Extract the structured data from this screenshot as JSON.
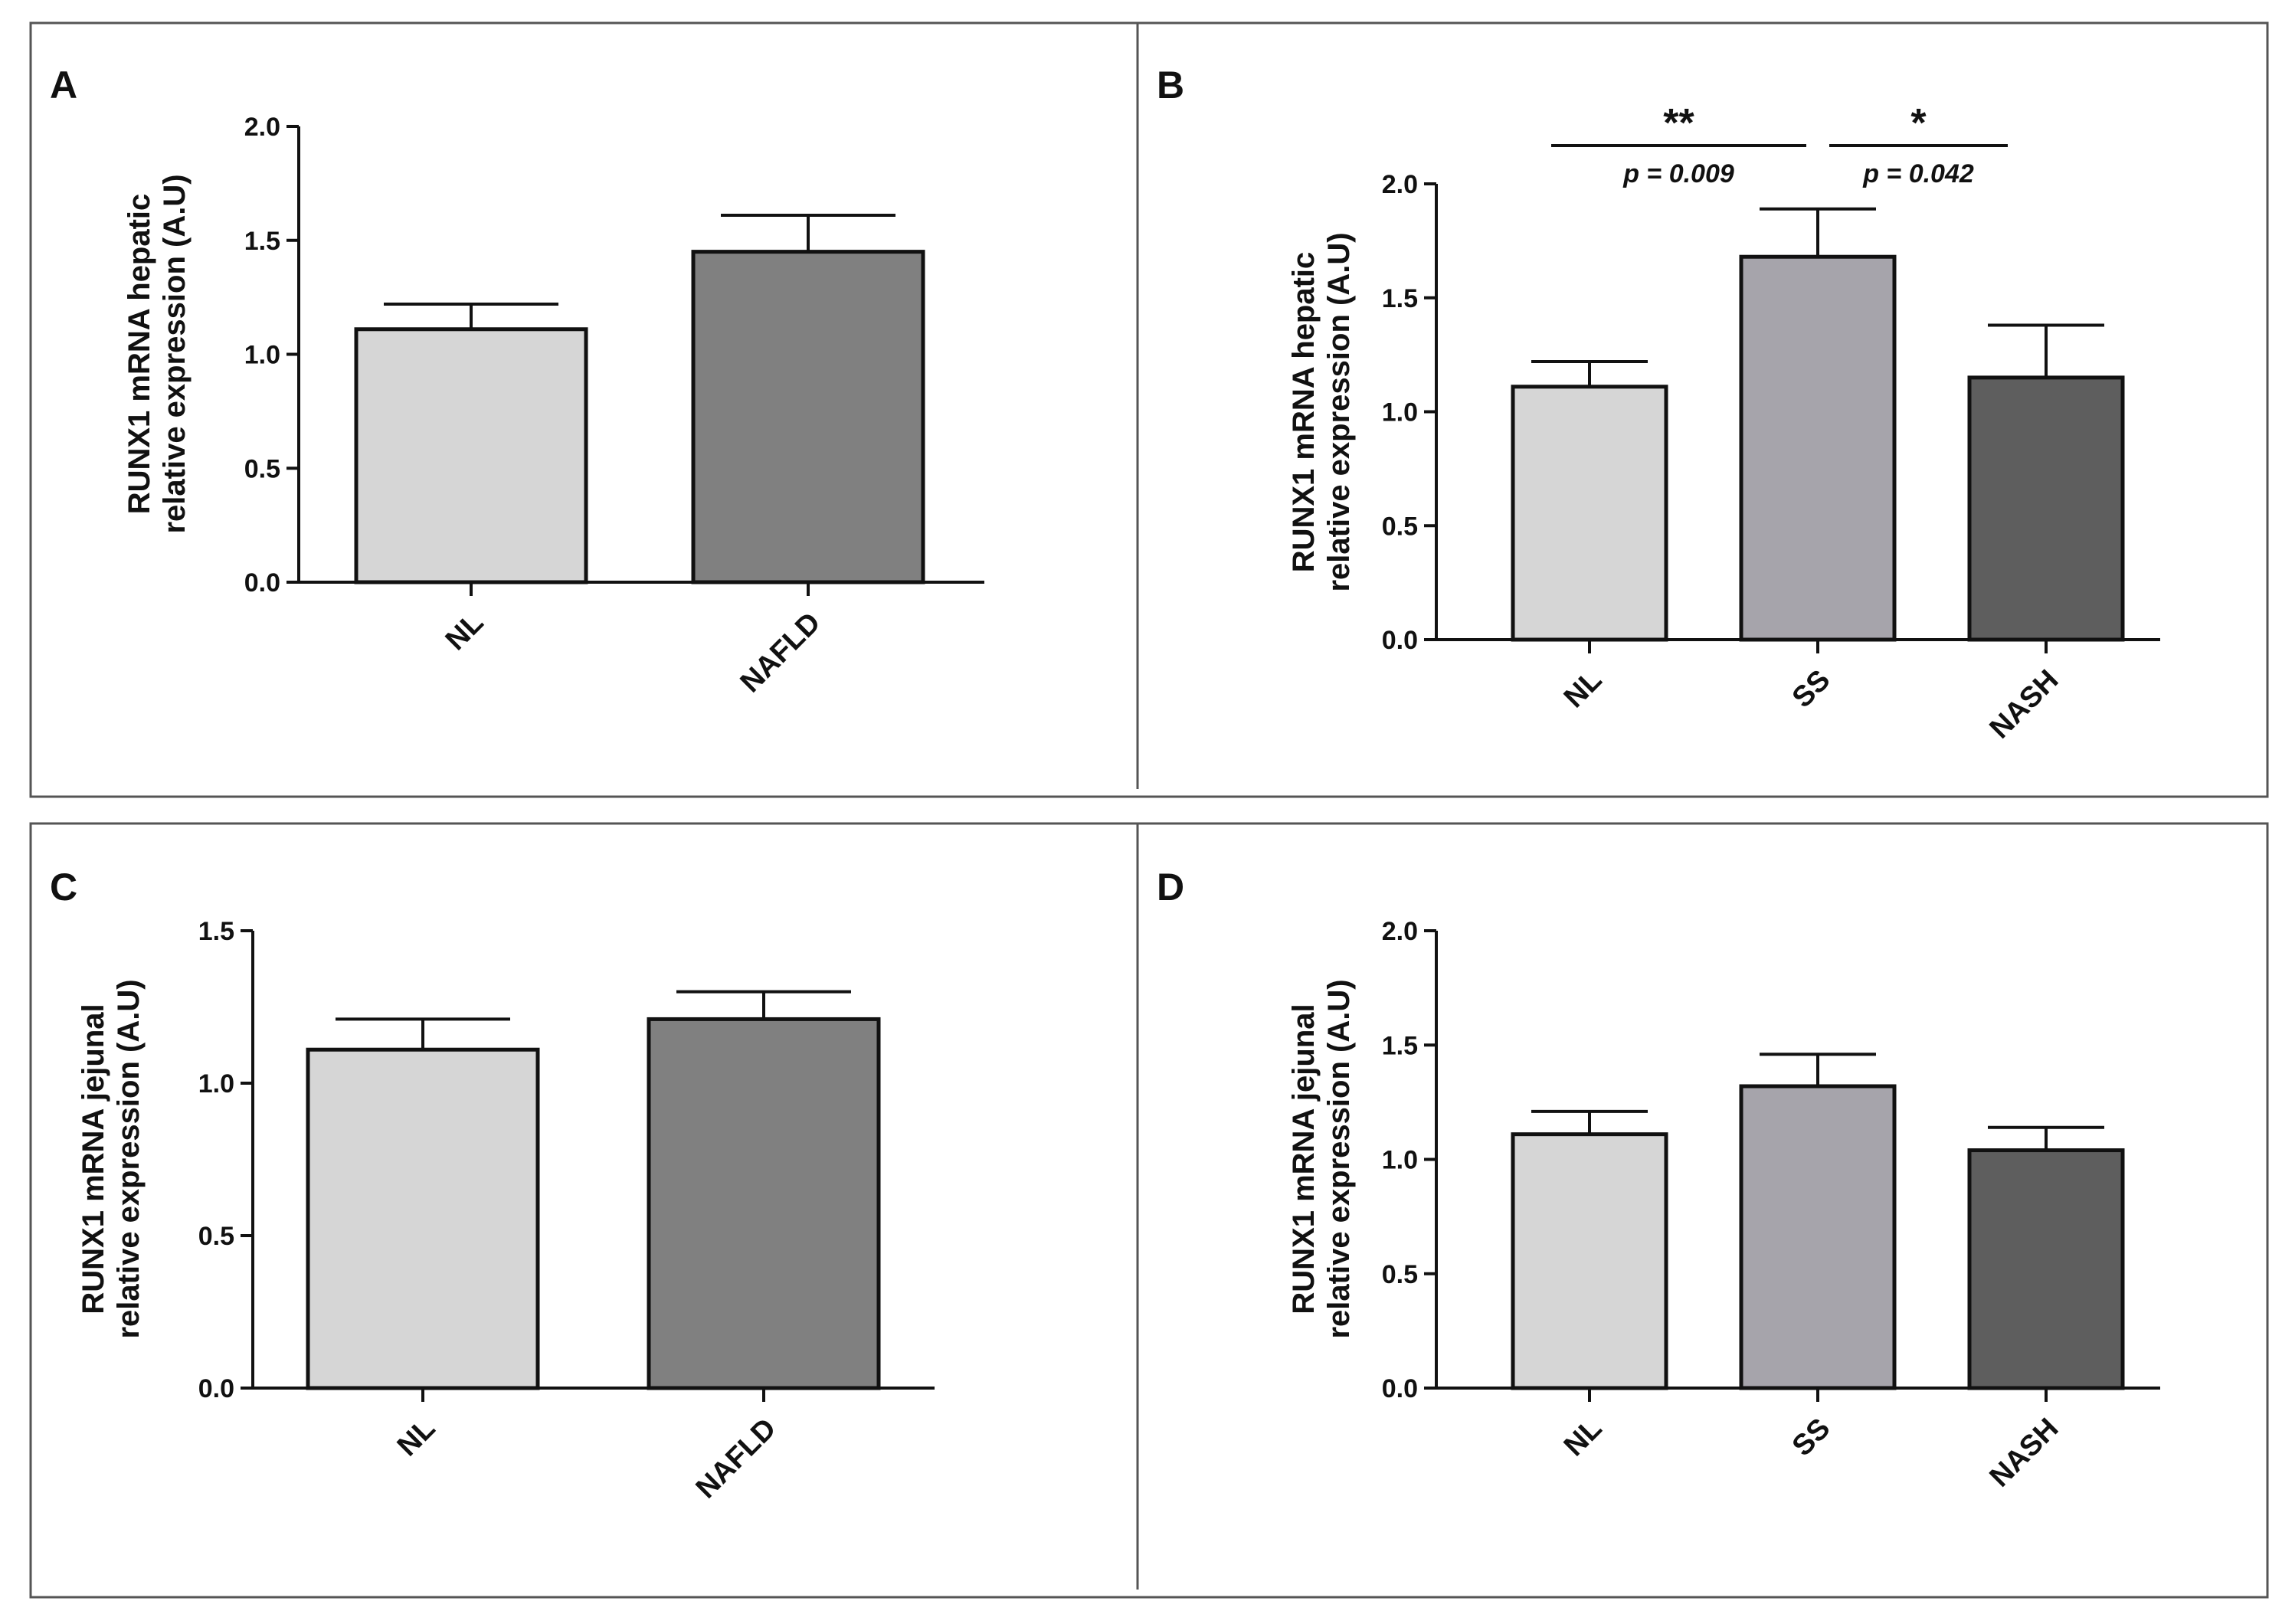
{
  "chart_data": [
    {
      "panel": "A",
      "type": "bar",
      "categories": [
        "NL",
        "NAFLD"
      ],
      "values": [
        1.11,
        1.45
      ],
      "errors": [
        0.11,
        0.16
      ],
      "colors": [
        "#d6d6d6",
        "#808080"
      ],
      "ylabel_lines": [
        "RUNX1 mRNA hepatic",
        "relative expression (A.U)"
      ],
      "ylim": [
        0,
        2.0
      ],
      "yticks": [
        "0.0",
        "0.5",
        "1.0",
        "1.5",
        "2.0"
      ],
      "ytick_values": [
        0,
        0.5,
        1.0,
        1.5,
        2.0
      ],
      "significance": []
    },
    {
      "panel": "B",
      "type": "bar",
      "categories": [
        "NL",
        "SS",
        "NASH"
      ],
      "values": [
        1.11,
        1.68,
        1.15
      ],
      "errors": [
        0.11,
        0.21,
        0.23
      ],
      "colors": [
        "#d6d6d6",
        "#a6a4ab",
        "#5e5e5e"
      ],
      "ylabel_lines": [
        "RUNX1 mRNA hepatic",
        "relative expression (A.U)"
      ],
      "ylim": [
        0,
        2.0
      ],
      "yticks": [
        "0.0",
        "0.5",
        "1.0",
        "1.5",
        "2.0"
      ],
      "ytick_values": [
        0,
        0.5,
        1.0,
        1.5,
        2.0
      ],
      "significance": [
        {
          "from": "NL",
          "to": "SS",
          "stars": "**",
          "p": "p = 0.009"
        },
        {
          "from": "SS",
          "to": "NASH",
          "stars": "*",
          "p": "p = 0.042"
        }
      ]
    },
    {
      "panel": "C",
      "type": "bar",
      "categories": [
        "NL",
        "NAFLD"
      ],
      "values": [
        1.11,
        1.21
      ],
      "errors": [
        0.1,
        0.09
      ],
      "colors": [
        "#d6d6d6",
        "#808080"
      ],
      "ylabel_lines": [
        "RUNX1 mRNA jejunal",
        "relative expression (A.U)"
      ],
      "ylim": [
        0,
        1.5
      ],
      "yticks": [
        "0.0",
        "0.5",
        "1.0",
        "1.5"
      ],
      "ytick_values": [
        0,
        0.5,
        1.0,
        1.5
      ],
      "significance": []
    },
    {
      "panel": "D",
      "type": "bar",
      "categories": [
        "NL",
        "SS",
        "NASH"
      ],
      "values": [
        1.11,
        1.32,
        1.04
      ],
      "errors": [
        0.1,
        0.14,
        0.1
      ],
      "colors": [
        "#d6d6d6",
        "#a6a4ab",
        "#5e5e5e"
      ],
      "ylabel_lines": [
        "RUNX1 mRNA jejunal",
        "relative expression (A.U)"
      ],
      "ylim": [
        0,
        2.0
      ],
      "yticks": [
        "0.0",
        "0.5",
        "1.0",
        "1.5",
        "2.0"
      ],
      "ytick_values": [
        0,
        0.5,
        1.0,
        1.5,
        2.0
      ],
      "significance": []
    }
  ]
}
